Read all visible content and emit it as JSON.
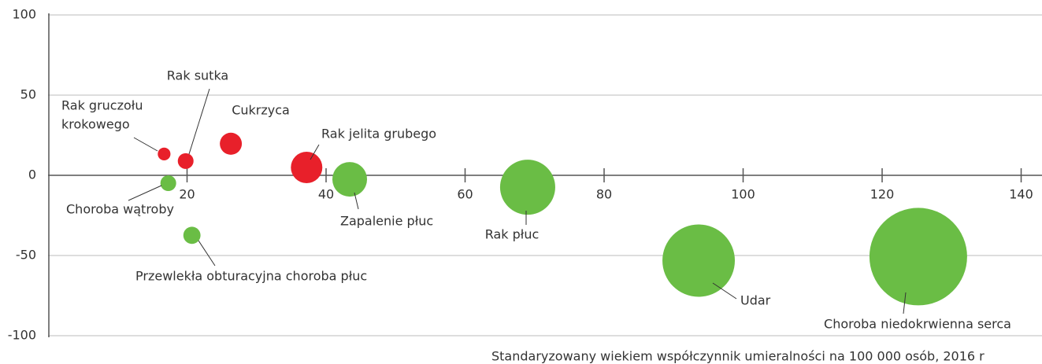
{
  "chart_data": {
    "type": "scatter",
    "x_label": "Standaryzowany wiekiem współczynnik umieralności na 100 000 osób, 2016 r",
    "labels": [
      [
        "Rak gruczołu",
        "krokowego"
      ],
      [
        "Rak sutka"
      ],
      [
        "Cukrzyca"
      ],
      [
        "Rak jelita grubego"
      ],
      [
        "Choroba wątroby"
      ],
      [
        "Zapalenie płuc"
      ],
      [
        "Przewlekła obturacyjna choroba płuc"
      ],
      [
        "Rak płuc"
      ],
      [
        "Udar"
      ],
      [
        "Choroba niedokrwienna serca"
      ]
    ],
    "x": [
      16.7,
      19.8,
      26.3,
      37.2,
      17.3,
      43.4,
      20.7,
      69.0,
      93.6,
      125.2
    ],
    "y": [
      13.3,
      8.9,
      19.7,
      4.9,
      -4.9,
      -2.5,
      -37.4,
      -7.4,
      -53.2,
      -50.7
    ],
    "sizes": [
      1.7,
      2.6,
      5.1,
      10.4,
      2.6,
      12.6,
      3.1,
      31.9,
      55,
      100
    ],
    "colors": [
      "#e8202a",
      "#e8202a",
      "#e8202a",
      "#e8202a",
      "#6abd45",
      "#6abd45",
      "#6abd45",
      "#6abd45",
      "#6abd45",
      "#6abd45"
    ],
    "xlim": [
      0,
      143
    ],
    "xticks": [
      20,
      40,
      60,
      80,
      100,
      120,
      140
    ],
    "ylim": [
      -100,
      100
    ],
    "yticks": [
      100,
      50,
      0,
      -50,
      -100
    ],
    "grid": true
  }
}
